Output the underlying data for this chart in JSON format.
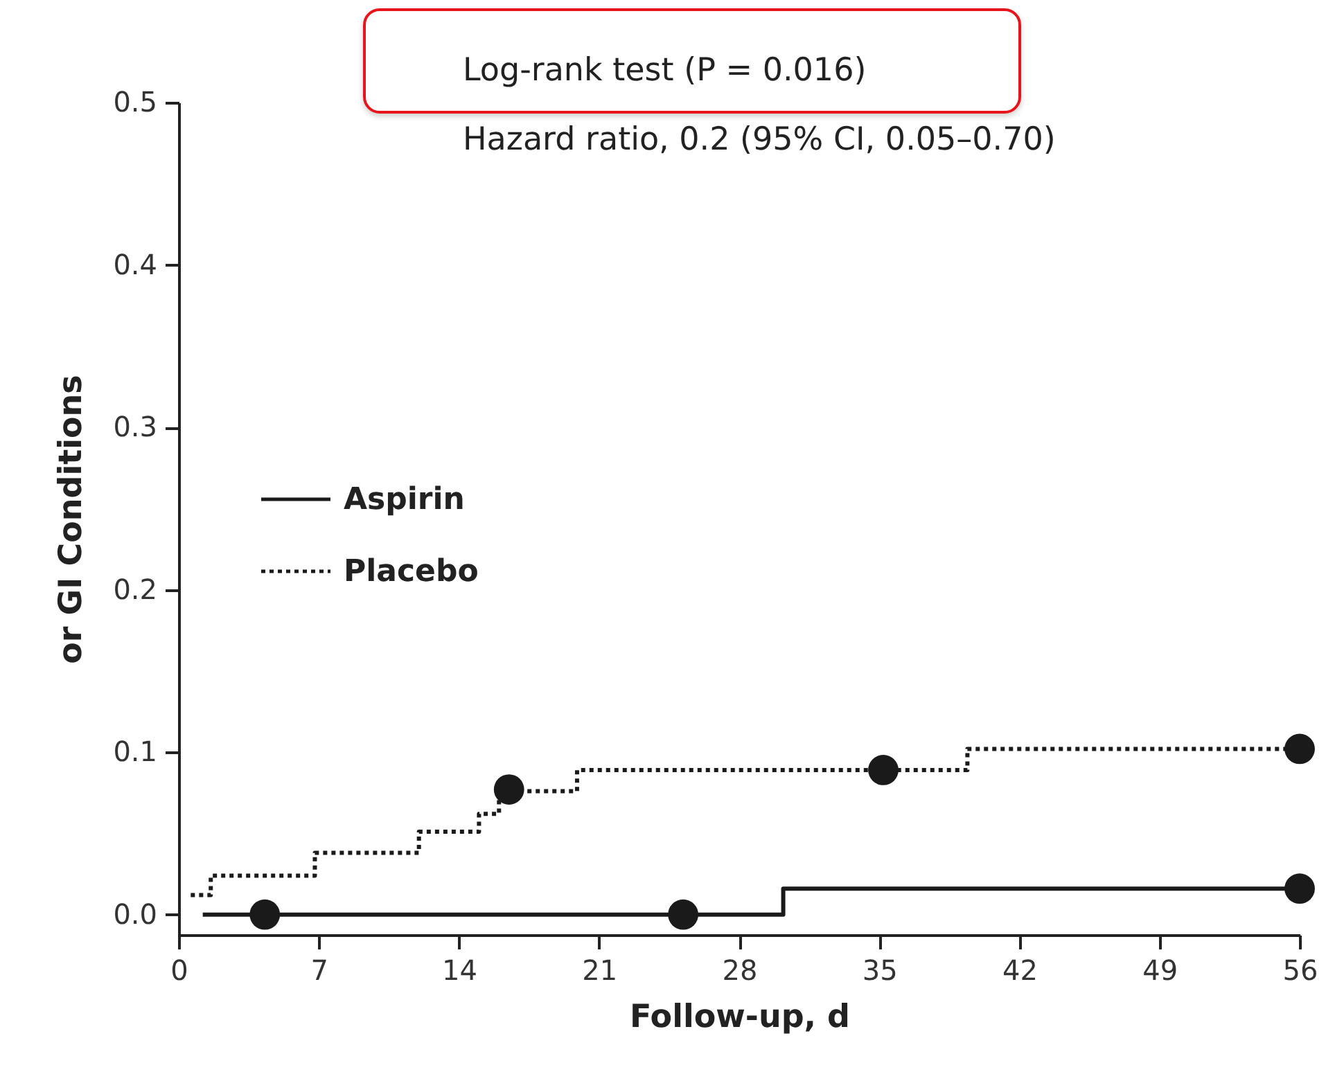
{
  "chart_data": {
    "type": "step",
    "xlabel": "Follow-up, d",
    "ylabel": "or GI Conditions",
    "annotations": [
      "Log-rank test (P = 0.016)",
      "Hazard ratio, 0.2 (95% CI, 0.05–0.70)"
    ],
    "xlim": [
      0,
      56
    ],
    "xticks": [
      0,
      7,
      14,
      21,
      28,
      35,
      42,
      49,
      56
    ],
    "ylim": [
      -0.0125,
      0.5
    ],
    "yticks": [
      {
        "value": 0,
        "label": "0.0"
      },
      0.1,
      0.2,
      0.3,
      0.4,
      0.5
    ],
    "legend": "left",
    "series": [
      {
        "name": "Aspirin",
        "color": "#1a1a1a",
        "line_style": "solid",
        "x": [
          1.2,
          30.2,
          56
        ],
        "values": [
          0,
          0.016,
          0.016
        ]
      },
      {
        "name": "Placebo",
        "color": "#1a1a1a",
        "line_style": "dotted",
        "x": [
          0.6,
          1.6,
          6.8,
          12,
          15,
          16,
          19.9,
          39.4,
          56
        ],
        "values": [
          0.012,
          0.024,
          0.038,
          0.051,
          0.062,
          0.076,
          0.089,
          0.102,
          0.102
        ]
      },
      {
        "type": "scatter",
        "color": "#1a1a1a",
        "marker": "circle",
        "x": [
          4.3,
          25.2,
          56
        ],
        "values": [
          0,
          0,
          0.016
        ]
      },
      {
        "type": "scatter",
        "color": "#1a1a1a",
        "marker": "circle",
        "x": [
          16.5,
          35.2,
          56
        ],
        "values": [
          0.077,
          0.089,
          0.102
        ]
      }
    ]
  }
}
